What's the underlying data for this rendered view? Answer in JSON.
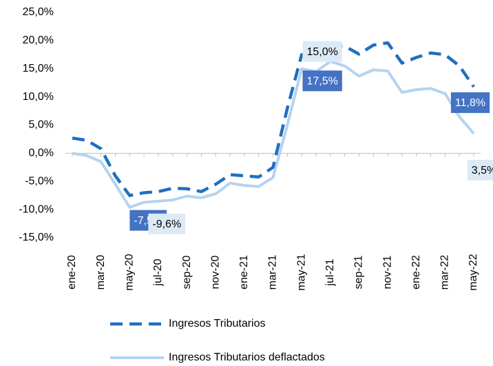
{
  "chart_data": {
    "type": "line",
    "categories": [
      "ene-20",
      null,
      "mar-20",
      null,
      "may-20",
      null,
      "jul-20",
      null,
      "sep-20",
      null,
      "nov-20",
      null,
      "ene-21",
      null,
      "mar-21",
      null,
      "may-21",
      null,
      "jul-21",
      null,
      "sep-21",
      null,
      "nov-21",
      null,
      "ene-22",
      null,
      "mar-22",
      null,
      "may-22"
    ],
    "ylim": [
      -15,
      25
    ],
    "yticks": [
      {
        "value": -15,
        "label": "-15,0%"
      },
      {
        "value": -10,
        "label": "-10,0%"
      },
      {
        "value": -5,
        "label": "-5,0%"
      },
      {
        "value": 0,
        "label": "0,0%"
      },
      {
        "value": 5,
        "label": "5,0%"
      },
      {
        "value": 10,
        "label": "10,0%"
      },
      {
        "value": 15,
        "label": "15,0%"
      },
      {
        "value": 20,
        "label": "20,0%"
      },
      {
        "value": 25,
        "label": "25,0%"
      }
    ],
    "grid": false,
    "legend": "bottom",
    "series": [
      {
        "name": "Ingresos Tributarios",
        "color": "#1f6fbf",
        "dashed": true,
        "values": [
          2.7,
          2.3,
          0.8,
          -4.0,
          -7.5,
          -7.0,
          -6.8,
          -6.2,
          -6.3,
          -6.8,
          -5.5,
          -3.8,
          -4.0,
          -4.2,
          -2.5,
          8.0,
          17.5,
          17.3,
          19.0,
          19.0,
          17.6,
          19.2,
          19.6,
          16.0,
          17.0,
          17.8,
          17.5,
          15.5,
          11.8
        ],
        "value_labels": [
          null,
          null,
          null,
          null,
          "-7,5%",
          null,
          null,
          null,
          null,
          null,
          null,
          null,
          null,
          null,
          null,
          null,
          "17,5%",
          null,
          null,
          null,
          null,
          null,
          null,
          null,
          null,
          null,
          null,
          null,
          "11,8%"
        ]
      },
      {
        "name": "Ingresos Tributarios deflactados",
        "color": "#b4d3ee",
        "dashed": false,
        "values": [
          0.0,
          -0.4,
          -1.5,
          -5.5,
          -9.6,
          -8.7,
          -8.5,
          -8.3,
          -7.6,
          -7.9,
          -7.2,
          -5.3,
          -5.7,
          -5.9,
          -4.3,
          5.0,
          15.0,
          14.5,
          16.3,
          15.5,
          13.7,
          14.8,
          14.6,
          10.8,
          11.3,
          11.5,
          10.6,
          6.5,
          3.5
        ],
        "value_labels": [
          null,
          null,
          null,
          null,
          "-9,6%",
          null,
          null,
          null,
          null,
          null,
          null,
          null,
          null,
          null,
          null,
          null,
          "15,0%",
          null,
          null,
          null,
          null,
          null,
          null,
          null,
          null,
          null,
          null,
          null,
          "3,5%"
        ]
      }
    ]
  }
}
